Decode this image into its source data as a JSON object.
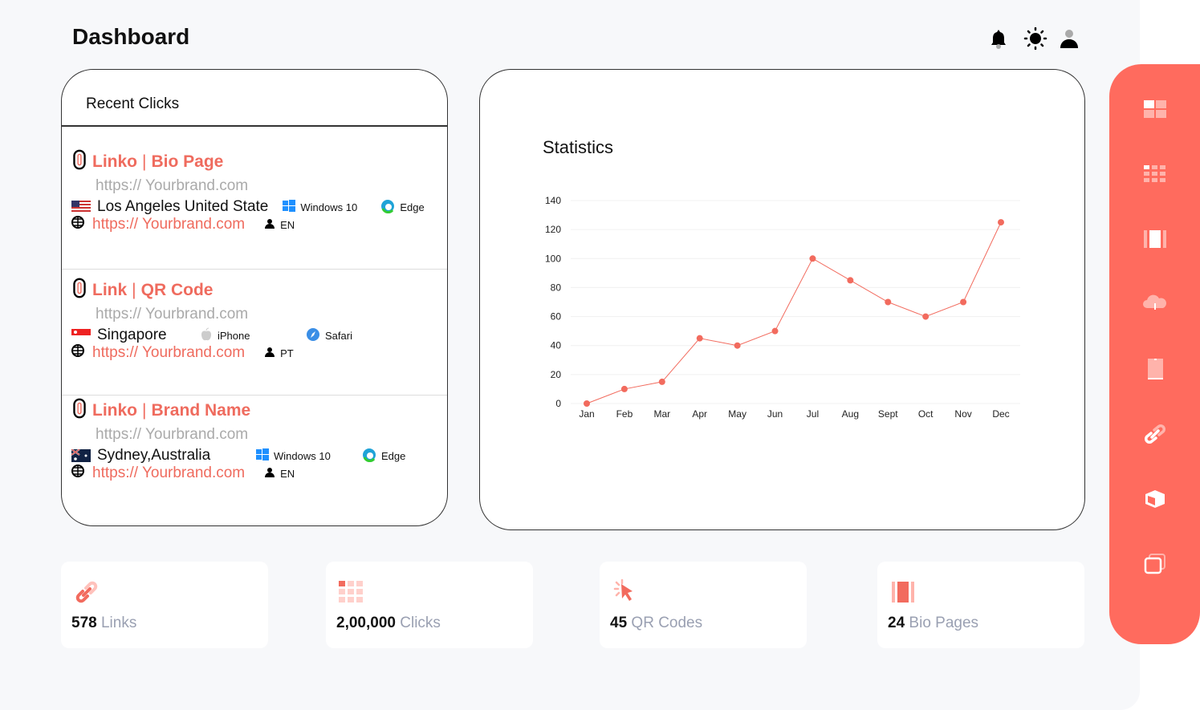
{
  "header": {
    "title": "Dashboard",
    "icons": [
      "bell-icon",
      "sun-icon",
      "user-icon"
    ]
  },
  "colors": {
    "accent": "#ff6b5e",
    "text_red": "#ef6b5e"
  },
  "recent_clicks": {
    "title": "Recent Clicks",
    "items": [
      {
        "name": "Linko",
        "type": "Bio Page",
        "short_url": "https:// Yourbrand.com",
        "location": "Los Angeles United State",
        "flag": "us",
        "os": "Windows 10",
        "browser": "Edge",
        "target_url": "https:// Yourbrand.com",
        "language": "EN"
      },
      {
        "name": "Link",
        "type": "QR Code",
        "short_url": "https:// Yourbrand.com",
        "location": "Singapore",
        "flag": "sg",
        "os": "iPhone",
        "browser": "Safari",
        "target_url": "https:// Yourbrand.com",
        "language": "PT"
      },
      {
        "name": "Linko",
        "type": "Brand Name",
        "short_url": "https:// Yourbrand.com",
        "location": "Sydney,Australia",
        "flag": "au",
        "os": "Windows 10",
        "browser": "Edge",
        "target_url": "https:// Yourbrand.com",
        "language": "EN"
      }
    ]
  },
  "statistics": {
    "title": "Statistics"
  },
  "chart_data": {
    "type": "line",
    "categories": [
      "Jan",
      "Feb",
      "Mar",
      "Apr",
      "May",
      "Jun",
      "Jul",
      "Aug",
      "Sept",
      "Oct",
      "Nov",
      "Dec"
    ],
    "values": [
      0,
      10,
      15,
      45,
      40,
      50,
      100,
      85,
      70,
      60,
      70,
      125
    ],
    "ylim": [
      0,
      140
    ],
    "yticks": [
      "0",
      "20",
      "40",
      "60",
      "80",
      "100",
      "120",
      "140"
    ],
    "grid": true,
    "color": "#f26b5e"
  },
  "summary": [
    {
      "value": "578",
      "label": "Links",
      "icon": "link-icon"
    },
    {
      "value": "2,00,000",
      "label": "Clicks",
      "icon": "grid-icon"
    },
    {
      "value": "45",
      "label": "QR Codes",
      "icon": "cursor-click-icon"
    },
    {
      "value": "24",
      "label": "Bio Pages",
      "icon": "pages-icon"
    }
  ],
  "sidebar": {
    "items": [
      "dashboard-icon",
      "apps-icon",
      "pages-icon",
      "cloud-download-icon",
      "tablet-icon",
      "link-icon",
      "box-icon",
      "copy-icon"
    ]
  }
}
